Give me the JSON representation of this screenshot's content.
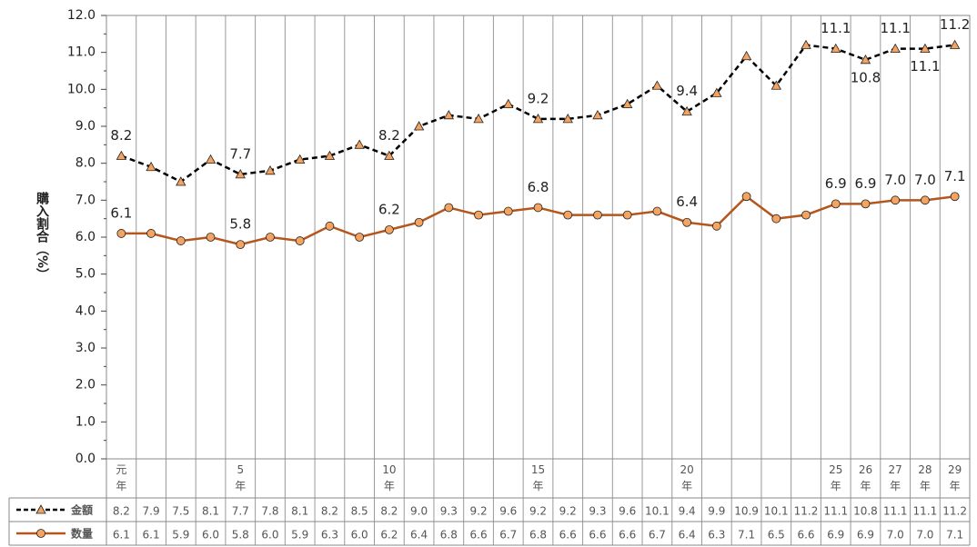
{
  "chart_data": {
    "type": "line",
    "ylabel": "購入割合（%）",
    "categories": [
      "元年",
      null,
      null,
      null,
      "5年",
      null,
      null,
      null,
      null,
      "10年",
      null,
      null,
      null,
      null,
      "15年",
      null,
      null,
      null,
      null,
      "20年",
      null,
      null,
      null,
      null,
      "25年",
      "26年",
      "27年",
      "28年",
      "29年"
    ],
    "ylim": [
      0,
      12
    ],
    "yticks": [
      {
        "value": 0,
        "label": "0.0"
      },
      {
        "value": 1,
        "label": "1.0"
      },
      {
        "value": 2,
        "label": "2.0"
      },
      {
        "value": 3,
        "label": "3.0"
      },
      {
        "value": 4,
        "label": "4.0"
      },
      {
        "value": 5,
        "label": "5.0"
      },
      {
        "value": 6,
        "label": "6.0"
      },
      {
        "value": 7,
        "label": "7.0"
      },
      {
        "value": 8,
        "label": "8.0"
      },
      {
        "value": 9,
        "label": "9.0"
      },
      {
        "value": 10,
        "label": "10.0"
      },
      {
        "value": 11,
        "label": "11.0"
      },
      {
        "value": 12,
        "label": "12.0"
      }
    ],
    "series": [
      {
        "name": "金額",
        "color": "#000000",
        "marker_color": "#f4a460",
        "marker": "triangle",
        "dash": true,
        "values": [
          8.2,
          7.9,
          7.5,
          8.1,
          7.7,
          7.8,
          8.1,
          8.2,
          8.5,
          8.2,
          9.0,
          9.3,
          9.2,
          9.6,
          9.2,
          9.2,
          9.3,
          9.6,
          10.1,
          9.4,
          9.9,
          10.9,
          10.1,
          11.2,
          11.1,
          10.8,
          11.1,
          11.1,
          11.2
        ],
        "value_labels": [
          "8.2",
          "7.9",
          "7.5",
          "8.1",
          "7.7",
          "7.8",
          "8.1",
          "8.2",
          "8.5",
          "8.2",
          "9.0",
          "9.3",
          "9.2",
          "9.6",
          "9.2",
          "9.2",
          "9.3",
          "9.6",
          "10.1",
          "9.4",
          "9.9",
          "10.9",
          "10.1",
          "11.2",
          "11.1",
          "10.8",
          "11.1",
          "11.1",
          "11.2"
        ],
        "data_labels": [
          "8.2",
          null,
          null,
          null,
          "7.7",
          null,
          null,
          null,
          null,
          "8.2",
          null,
          null,
          null,
          null,
          "9.2",
          null,
          null,
          null,
          null,
          "9.4",
          null,
          null,
          null,
          null,
          "11.1",
          "10.8",
          "11.1",
          "11.1",
          "11.2"
        ]
      },
      {
        "name": "数量",
        "color": "#b5561c",
        "marker_color": "#f4a460",
        "marker": "circle",
        "dash": false,
        "values": [
          6.1,
          6.1,
          5.9,
          6.0,
          5.8,
          6.0,
          5.9,
          6.3,
          6.0,
          6.2,
          6.4,
          6.8,
          6.6,
          6.7,
          6.8,
          6.6,
          6.6,
          6.6,
          6.7,
          6.4,
          6.3,
          7.1,
          6.5,
          6.6,
          6.9,
          6.9,
          7.0,
          7.0,
          7.1
        ],
        "value_labels": [
          "6.1",
          "6.1",
          "5.9",
          "6.0",
          "5.8",
          "6.0",
          "5.9",
          "6.3",
          "6.0",
          "6.2",
          "6.4",
          "6.8",
          "6.6",
          "6.7",
          "6.8",
          "6.6",
          "6.6",
          "6.6",
          "6.7",
          "6.4",
          "6.3",
          "7.1",
          "6.5",
          "6.6",
          "6.9",
          "6.9",
          "7.0",
          "7.0",
          "7.1"
        ],
        "data_labels": [
          "6.1",
          null,
          null,
          null,
          "5.8",
          null,
          null,
          null,
          null,
          "6.2",
          null,
          null,
          null,
          null,
          "6.8",
          null,
          null,
          null,
          null,
          "6.4",
          null,
          null,
          null,
          null,
          "6.9",
          "6.9",
          "7.0",
          "7.0",
          "7.1"
        ]
      }
    ]
  }
}
